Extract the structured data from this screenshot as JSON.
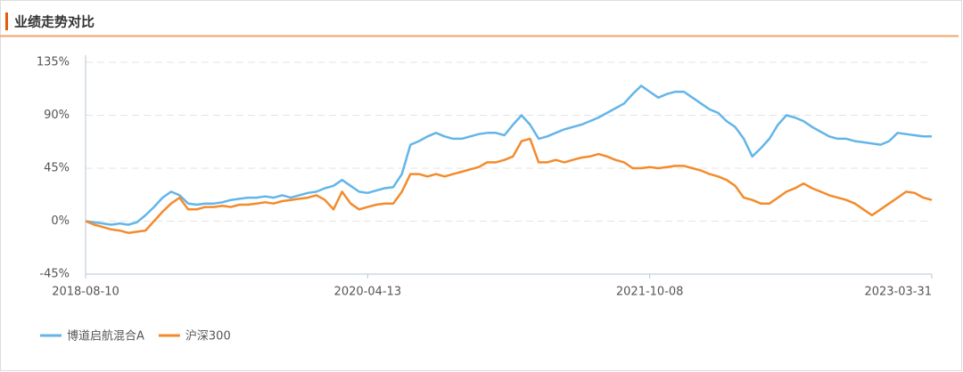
{
  "chart_data": {
    "type": "line",
    "title": "业绩走势对比",
    "categories": [
      "2018-08-10",
      null,
      null,
      null,
      null,
      null,
      null,
      null,
      null,
      null,
      null,
      null,
      null,
      null,
      null,
      null,
      null,
      null,
      null,
      null,
      null,
      null,
      null,
      null,
      null,
      null,
      null,
      null,
      null,
      null,
      null,
      null,
      null,
      "2020-04-13",
      null,
      null,
      null,
      null,
      null,
      null,
      null,
      null,
      null,
      null,
      null,
      null,
      null,
      null,
      null,
      null,
      null,
      null,
      null,
      null,
      null,
      null,
      null,
      null,
      null,
      null,
      null,
      null,
      null,
      null,
      null,
      null,
      "2021-10-08",
      null,
      null,
      null,
      null,
      null,
      null,
      null,
      null,
      null,
      null,
      null,
      null,
      null,
      null,
      null,
      null,
      null,
      null,
      null,
      null,
      null,
      null,
      null,
      null,
      null,
      null,
      null,
      null,
      null,
      null,
      null,
      null,
      "2023-03-31"
    ],
    "series": [
      {
        "name": "博道启航混合A",
        "color": "#63b5e8",
        "values": [
          0,
          -1,
          -2,
          -3,
          -2,
          -3,
          -1,
          5,
          12,
          20,
          25,
          22,
          15,
          14,
          15,
          15,
          16,
          18,
          19,
          20,
          20,
          21,
          20,
          22,
          20,
          22,
          24,
          25,
          28,
          30,
          35,
          30,
          25,
          24,
          26,
          28,
          29,
          40,
          65,
          68,
          72,
          75,
          72,
          70,
          70,
          72,
          74,
          75,
          75,
          73,
          82,
          90,
          82,
          70,
          72,
          75,
          78,
          80,
          82,
          85,
          88,
          92,
          96,
          100,
          108,
          115,
          110,
          105,
          108,
          110,
          110,
          105,
          100,
          95,
          92,
          85,
          80,
          70,
          55,
          62,
          70,
          82,
          90,
          88,
          85,
          80,
          76,
          72,
          70,
          70,
          68,
          67,
          66,
          65,
          68,
          75,
          74,
          73,
          72,
          72
        ]
      },
      {
        "name": "沪深300",
        "color": "#f38b2c",
        "values": [
          0,
          -3,
          -5,
          -7,
          -8,
          -10,
          -9,
          -8,
          0,
          8,
          15,
          20,
          10,
          10,
          12,
          12,
          13,
          12,
          14,
          14,
          15,
          16,
          15,
          17,
          18,
          19,
          20,
          22,
          18,
          10,
          25,
          15,
          10,
          12,
          14,
          15,
          15,
          25,
          40,
          40,
          38,
          40,
          38,
          40,
          42,
          44,
          46,
          50,
          50,
          52,
          55,
          68,
          70,
          50,
          50,
          52,
          50,
          52,
          54,
          55,
          57,
          55,
          52,
          50,
          45,
          45,
          46,
          45,
          46,
          47,
          47,
          45,
          43,
          40,
          38,
          35,
          30,
          20,
          18,
          15,
          15,
          20,
          25,
          28,
          32,
          28,
          25,
          22,
          20,
          18,
          15,
          10,
          5,
          10,
          15,
          20,
          25,
          24,
          20,
          18
        ]
      }
    ],
    "ylim": [
      -45,
      135
    ],
    "yticks": [
      {
        "value": -45,
        "label": "-45%"
      },
      {
        "value": 0,
        "label": "0%"
      },
      {
        "value": 45,
        "label": "45%"
      },
      {
        "value": 90,
        "label": "90%"
      },
      {
        "value": 135,
        "label": "135%"
      }
    ],
    "grid": true
  }
}
